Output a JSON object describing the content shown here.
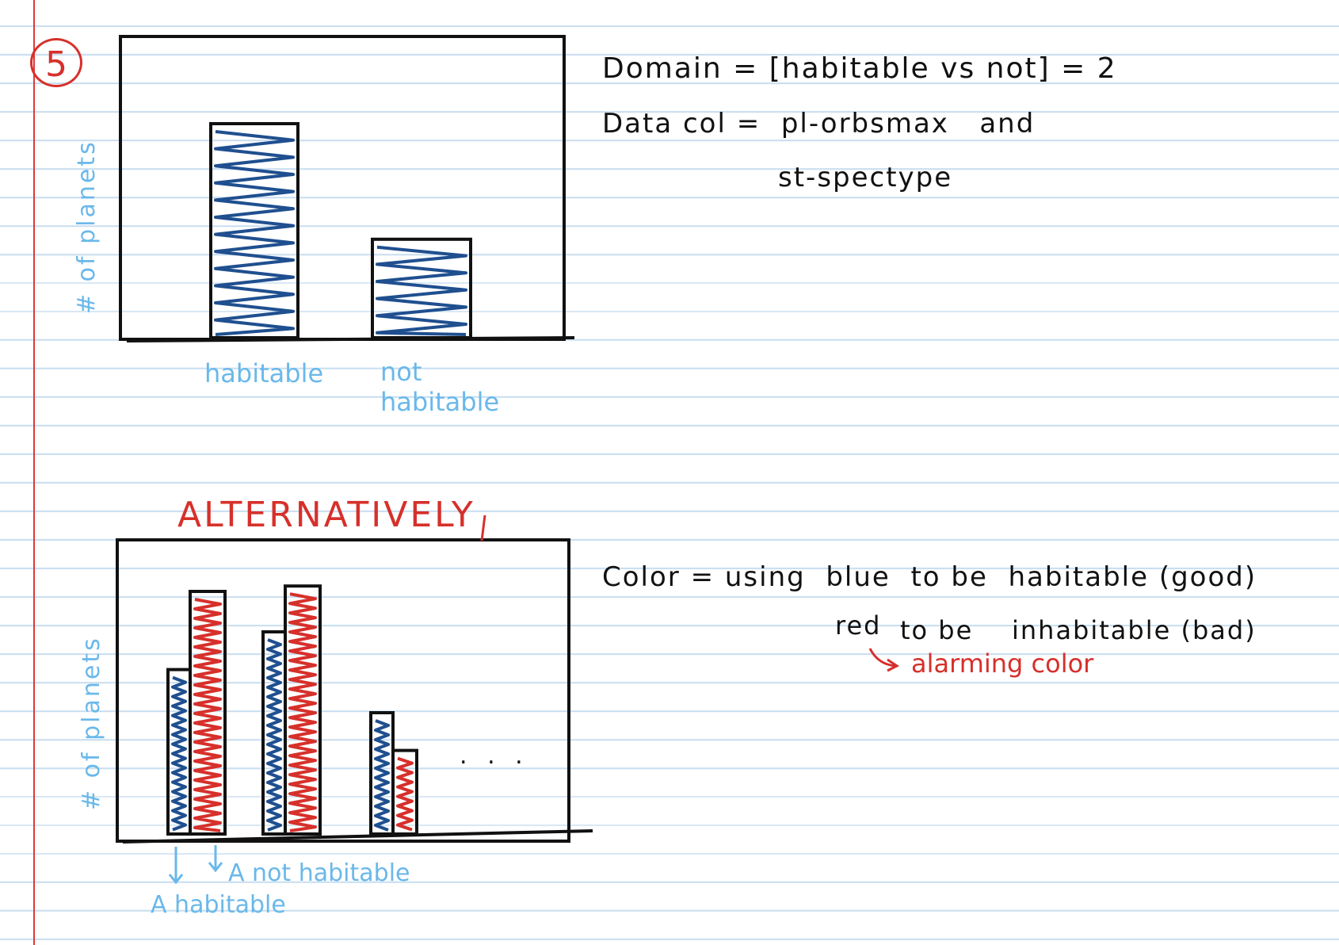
{
  "page_number": "5",
  "colors": {
    "blue_scribble": "#1f4f8f",
    "red_scribble": "#d6302b",
    "label_blue": "#6ab8ea",
    "ink": "#111111"
  },
  "sketch1": {
    "y_axis_label": "# of planets",
    "categories": [
      "habitable",
      "not\nhabitable"
    ],
    "bar_heights_relative": [
      1.0,
      0.46
    ]
  },
  "notes1": {
    "line1": "Domain = [habitable vs not] = 2",
    "line2": "Data col =  pl-orbsmax   and",
    "line3": "st-spectype"
  },
  "alt_heading": "ALTERNATIVELY",
  "sketch2": {
    "y_axis_label": "# of planets",
    "bar_heights_relative": [
      {
        "habitable": 0.61,
        "not_habitable": 0.9
      },
      {
        "habitable": 0.75,
        "not_habitable": 0.92
      },
      {
        "habitable": 0.45,
        "not_habitable": 0.31
      }
    ],
    "ellipsis": ". . .",
    "annotation_not_habitable": "A not habitable",
    "annotation_habitable": "A habitable"
  },
  "notes2": {
    "line1": "Color = using  blue  to be  habitable (good)",
    "line2_red": "red",
    "line2_rest": "to be    inhabitable (bad)",
    "line3": "alarming color"
  }
}
